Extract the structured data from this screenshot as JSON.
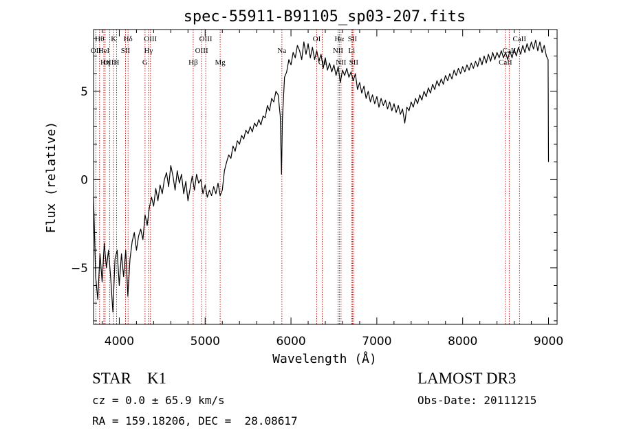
{
  "chart_data": {
    "type": "line",
    "title": "spec-55911-B91105_sp03-207.fits",
    "xlabel": "Wavelength (Å)",
    "ylabel": "Flux (relative)",
    "xlim": [
      3700,
      9100
    ],
    "ylim": [
      -8.2,
      8.5
    ],
    "xticks": [
      4000,
      5000,
      6000,
      7000,
      8000,
      9000
    ],
    "yticks": [
      -5,
      0,
      5
    ],
    "grid": false,
    "legend": "none",
    "line_color": "#000000",
    "marker_color": "#c00000",
    "series": [
      {
        "values": [
          [
            3700,
            -1.0
          ],
          [
            3725,
            -5.5
          ],
          [
            3750,
            -6.8
          ],
          [
            3775,
            -4.2
          ],
          [
            3800,
            -5.8
          ],
          [
            3825,
            -3.6
          ],
          [
            3850,
            -5.0
          ],
          [
            3875,
            -4.0
          ],
          [
            3900,
            -5.6
          ],
          [
            3925,
            -7.5
          ],
          [
            3950,
            -4.5
          ],
          [
            3975,
            -4.0
          ],
          [
            4000,
            -6.0
          ],
          [
            4025,
            -4.2
          ],
          [
            4050,
            -5.5
          ],
          [
            4075,
            -4.0
          ],
          [
            4100,
            -6.6
          ],
          [
            4125,
            -4.5
          ],
          [
            4150,
            -3.5
          ],
          [
            4175,
            -3.0
          ],
          [
            4200,
            -4.0
          ],
          [
            4225,
            -3.2
          ],
          [
            4250,
            -2.8
          ],
          [
            4275,
            -3.4
          ],
          [
            4300,
            -2.0
          ],
          [
            4325,
            -2.6
          ],
          [
            4350,
            -1.6
          ],
          [
            4375,
            -1.0
          ],
          [
            4400,
            -1.5
          ],
          [
            4425,
            -0.5
          ],
          [
            4450,
            -1.2
          ],
          [
            4475,
            -0.3
          ],
          [
            4500,
            -0.8
          ],
          [
            4525,
            0.0
          ],
          [
            4550,
            0.4
          ],
          [
            4575,
            -0.4
          ],
          [
            4600,
            0.8
          ],
          [
            4625,
            0.2
          ],
          [
            4650,
            -0.6
          ],
          [
            4675,
            0.5
          ],
          [
            4700,
            -0.2
          ],
          [
            4725,
            0.3
          ],
          [
            4750,
            -0.8
          ],
          [
            4775,
            -0.1
          ],
          [
            4800,
            -1.2
          ],
          [
            4825,
            -0.5
          ],
          [
            4850,
            0.2
          ],
          [
            4875,
            -0.6
          ],
          [
            4900,
            0.3
          ],
          [
            4925,
            -0.2
          ],
          [
            4950,
            0.0
          ],
          [
            4975,
            -0.8
          ],
          [
            5000,
            -0.3
          ],
          [
            5025,
            -1.0
          ],
          [
            5050,
            -0.6
          ],
          [
            5075,
            -0.9
          ],
          [
            5100,
            -0.4
          ],
          [
            5125,
            -0.8
          ],
          [
            5150,
            -0.2
          ],
          [
            5175,
            -0.9
          ],
          [
            5200,
            -0.6
          ],
          [
            5225,
            0.5
          ],
          [
            5250,
            1.0
          ],
          [
            5275,
            1.4
          ],
          [
            5300,
            1.2
          ],
          [
            5325,
            1.9
          ],
          [
            5350,
            1.6
          ],
          [
            5375,
            2.2
          ],
          [
            5400,
            2.0
          ],
          [
            5425,
            2.5
          ],
          [
            5450,
            2.3
          ],
          [
            5475,
            2.8
          ],
          [
            5500,
            2.6
          ],
          [
            5525,
            3.0
          ],
          [
            5550,
            2.7
          ],
          [
            5575,
            3.2
          ],
          [
            5600,
            3.0
          ],
          [
            5625,
            3.4
          ],
          [
            5650,
            3.1
          ],
          [
            5675,
            3.6
          ],
          [
            5700,
            3.5
          ],
          [
            5725,
            4.2
          ],
          [
            5750,
            3.9
          ],
          [
            5775,
            4.6
          ],
          [
            5800,
            4.4
          ],
          [
            5825,
            5.0
          ],
          [
            5850,
            4.8
          ],
          [
            5875,
            3.6
          ],
          [
            5890,
            0.3
          ],
          [
            5900,
            3.4
          ],
          [
            5925,
            5.8
          ],
          [
            5950,
            6.1
          ],
          [
            5975,
            6.8
          ],
          [
            6000,
            6.5
          ],
          [
            6025,
            7.2
          ],
          [
            6050,
            6.9
          ],
          [
            6075,
            7.6
          ],
          [
            6100,
            7.3
          ],
          [
            6125,
            6.8
          ],
          [
            6150,
            7.8
          ],
          [
            6175,
            7.1
          ],
          [
            6200,
            7.7
          ],
          [
            6225,
            6.9
          ],
          [
            6250,
            7.5
          ],
          [
            6275,
            6.8
          ],
          [
            6300,
            7.3
          ],
          [
            6325,
            6.7
          ],
          [
            6350,
            7.1
          ],
          [
            6375,
            6.3
          ],
          [
            6400,
            6.9
          ],
          [
            6425,
            6.2
          ],
          [
            6450,
            6.6
          ],
          [
            6475,
            6.1
          ],
          [
            6500,
            6.5
          ],
          [
            6525,
            5.9
          ],
          [
            6550,
            6.4
          ],
          [
            6575,
            5.5
          ],
          [
            6600,
            6.2
          ],
          [
            6625,
            5.9
          ],
          [
            6650,
            6.3
          ],
          [
            6675,
            5.8
          ],
          [
            6700,
            6.1
          ],
          [
            6725,
            5.6
          ],
          [
            6750,
            6.0
          ],
          [
            6775,
            5.1
          ],
          [
            6800,
            5.5
          ],
          [
            6825,
            4.9
          ],
          [
            6850,
            5.3
          ],
          [
            6875,
            4.6
          ],
          [
            6900,
            5.0
          ],
          [
            6925,
            4.4
          ],
          [
            6950,
            4.8
          ],
          [
            6975,
            4.3
          ],
          [
            7000,
            4.7
          ],
          [
            7025,
            4.1
          ],
          [
            7050,
            4.6
          ],
          [
            7075,
            4.2
          ],
          [
            7100,
            4.5
          ],
          [
            7125,
            4.0
          ],
          [
            7150,
            4.4
          ],
          [
            7175,
            3.9
          ],
          [
            7200,
            4.3
          ],
          [
            7225,
            3.8
          ],
          [
            7250,
            4.2
          ],
          [
            7275,
            3.7
          ],
          [
            7300,
            4.0
          ],
          [
            7325,
            3.2
          ],
          [
            7350,
            4.1
          ],
          [
            7375,
            3.9
          ],
          [
            7400,
            4.4
          ],
          [
            7425,
            4.1
          ],
          [
            7450,
            4.6
          ],
          [
            7475,
            4.3
          ],
          [
            7500,
            4.8
          ],
          [
            7525,
            4.5
          ],
          [
            7550,
            5.0
          ],
          [
            7575,
            4.7
          ],
          [
            7600,
            5.2
          ],
          [
            7625,
            4.9
          ],
          [
            7650,
            5.4
          ],
          [
            7675,
            5.1
          ],
          [
            7700,
            5.6
          ],
          [
            7725,
            5.3
          ],
          [
            7750,
            5.7
          ],
          [
            7775,
            5.4
          ],
          [
            7800,
            5.9
          ],
          [
            7825,
            5.6
          ],
          [
            7850,
            6.0
          ],
          [
            7875,
            5.7
          ],
          [
            7900,
            6.2
          ],
          [
            7925,
            5.9
          ],
          [
            7950,
            6.3
          ],
          [
            7975,
            6.0
          ],
          [
            8000,
            6.4
          ],
          [
            8025,
            6.1
          ],
          [
            8050,
            6.5
          ],
          [
            8075,
            6.2
          ],
          [
            8100,
            6.6
          ],
          [
            8125,
            6.3
          ],
          [
            8150,
            6.7
          ],
          [
            8175,
            6.4
          ],
          [
            8200,
            6.9
          ],
          [
            8225,
            6.5
          ],
          [
            8250,
            7.0
          ],
          [
            8275,
            6.6
          ],
          [
            8300,
            7.1
          ],
          [
            8325,
            6.7
          ],
          [
            8350,
            7.2
          ],
          [
            8375,
            6.8
          ],
          [
            8400,
            7.2
          ],
          [
            8425,
            6.9
          ],
          [
            8450,
            7.3
          ],
          [
            8475,
            6.9
          ],
          [
            8500,
            7.2
          ],
          [
            8525,
            6.8
          ],
          [
            8550,
            7.3
          ],
          [
            8575,
            6.9
          ],
          [
            8600,
            7.4
          ],
          [
            8625,
            7.0
          ],
          [
            8650,
            7.5
          ],
          [
            8675,
            7.1
          ],
          [
            8700,
            7.6
          ],
          [
            8725,
            7.2
          ],
          [
            8750,
            7.7
          ],
          [
            8775,
            7.3
          ],
          [
            8800,
            7.8
          ],
          [
            8825,
            7.4
          ],
          [
            8850,
            7.9
          ],
          [
            8875,
            7.3
          ],
          [
            8900,
            7.8
          ],
          [
            8925,
            7.2
          ],
          [
            8950,
            7.6
          ],
          [
            8975,
            7.0
          ],
          [
            8995,
            6.8
          ],
          [
            9000,
            1.0
          ]
        ]
      }
    ],
    "line_markers": [
      {
        "wavelength": 3727,
        "label": "OII",
        "row": 2
      },
      {
        "wavelength": 3770,
        "label": "Hθ",
        "row": 1
      },
      {
        "wavelength": 3820,
        "label": "HeI",
        "row": 2
      },
      {
        "wavelength": 3835,
        "label": "Hη",
        "row": 3
      },
      {
        "wavelength": 3889,
        "label": "OIII",
        "row": 3
      },
      {
        "wavelength": 3934,
        "label": "K",
        "row": 1
      },
      {
        "wavelength": 3968,
        "label": "H",
        "row": 3
      },
      {
        "wavelength": 4072,
        "label": "SII",
        "row": 2
      },
      {
        "wavelength": 4102,
        "label": "Hδ",
        "row": 1
      },
      {
        "wavelength": 4300,
        "label": "G",
        "row": 3
      },
      {
        "wavelength": 4340,
        "label": "Hγ",
        "row": 2
      },
      {
        "wavelength": 4363,
        "label": "OIII",
        "row": 1
      },
      {
        "wavelength": 4861,
        "label": "Hβ",
        "row": 3
      },
      {
        "wavelength": 4959,
        "label": "OIII",
        "row": 2
      },
      {
        "wavelength": 5007,
        "label": "OIII",
        "row": 1
      },
      {
        "wavelength": 5175,
        "label": "Mg",
        "row": 3
      },
      {
        "wavelength": 5894,
        "label": "Na",
        "row": 2
      },
      {
        "wavelength": 6300,
        "label": "OI",
        "row": 1
      },
      {
        "wavelength": 6364,
        "label": "OI",
        "row": 3
      },
      {
        "wavelength": 6548,
        "label": "NII",
        "row": 2
      },
      {
        "wavelength": 6563,
        "label": "Hα",
        "row": 1
      },
      {
        "wavelength": 6583,
        "label": "NII",
        "row": 3
      },
      {
        "wavelength": 6707,
        "label": "Li",
        "row": 2
      },
      {
        "wavelength": 6716,
        "label": "SII",
        "row": 1
      },
      {
        "wavelength": 6731,
        "label": "SII",
        "row": 3
      },
      {
        "wavelength": 8498,
        "label": "CaII",
        "row": 3
      },
      {
        "wavelength": 8542,
        "label": "CaII",
        "row": 2
      },
      {
        "wavelength": 8662,
        "label": "CaII",
        "row": 1
      }
    ]
  },
  "info": {
    "class_subclass": "STAR    K1",
    "survey": "LAMOST DR3",
    "redshift": "cz = 0.0 ± 65.9 km/s",
    "obs_date": "Obs-Date: 20111215",
    "coords": "RA = 159.18206, DEC =  28.08617"
  }
}
